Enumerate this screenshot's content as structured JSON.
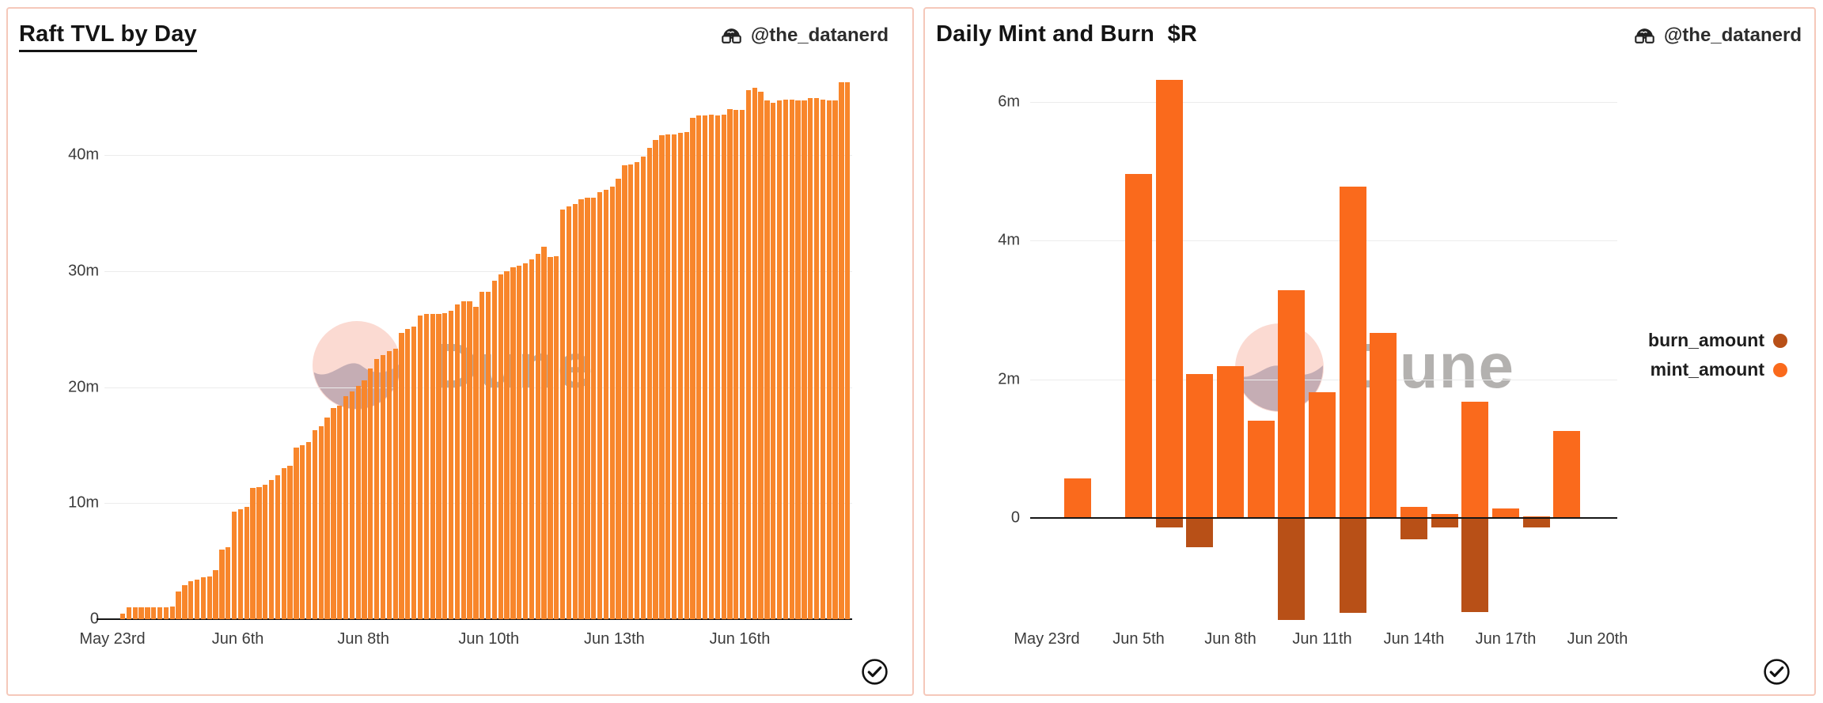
{
  "watermark": {
    "text": "Dune"
  },
  "colors": {
    "panel_border": "#F5C8BA",
    "grid": "#ECECEC",
    "axis": "#161616",
    "tvl_bar": "#F8862B",
    "mint": "#FA6A1C",
    "burn": "#B85017",
    "background": "#FFFFFF"
  },
  "left_panel": {
    "title": "Raft TVL by Day",
    "attribution": "@the_datanerd",
    "verified_icon": "check-circle",
    "chart_data": {
      "type": "bar",
      "title": "Raft TVL by Day",
      "unit": "millions",
      "ylim": [
        0,
        47
      ],
      "grid": true,
      "bar_color": "#F8862B",
      "y_ticks": [
        {
          "label": "40m",
          "value": 40
        },
        {
          "label": "30m",
          "value": 30
        },
        {
          "label": "20m",
          "value": 20
        },
        {
          "label": "10m",
          "value": 10
        },
        {
          "label": "0",
          "value": 0
        }
      ],
      "x_ticks": [
        "May 23rd",
        "Jun 6th",
        "Jun 8th",
        "Jun 10th",
        "Jun 13th",
        "Jun 16th"
      ],
      "series": [
        {
          "name": "tvl",
          "values": [
            0.5,
            1,
            1,
            1,
            1,
            1,
            1,
            1,
            1.1,
            2.4,
            2.9,
            3.3,
            3.4,
            3.6,
            3.7,
            4.2,
            6.0,
            6.2,
            9.3,
            9.5,
            9.7,
            11.3,
            11.4,
            11.6,
            12.0,
            12.4,
            13.0,
            13.2,
            14.8,
            15.0,
            15.3,
            16.3,
            16.6,
            17.4,
            18.2,
            18.4,
            19.2,
            19.6,
            20.1,
            20.6,
            21.6,
            22.4,
            22.8,
            23.1,
            23.3,
            24.7,
            25.0,
            25.2,
            26.2,
            26.3,
            26.3,
            26.3,
            26.4,
            26.6,
            27.1,
            27.4,
            27.4,
            26.9,
            28.2,
            28.2,
            29.2,
            29.7,
            30.0,
            30.3,
            30.5,
            30.7,
            31.0,
            31.5,
            32.1,
            31.2,
            31.3,
            35.3,
            35.6,
            35.8,
            36.2,
            36.3,
            36.3,
            36.8,
            37.0,
            37.3,
            38.0,
            39.1,
            39.2,
            39.4,
            39.9,
            40.6,
            41.3,
            41.7,
            41.8,
            41.8,
            41.9,
            42.0,
            43.2,
            43.4,
            43.4,
            43.5,
            43.4,
            43.5,
            44.0,
            43.9,
            43.9,
            45.6,
            45.8,
            45.5,
            44.7,
            44.5,
            44.7,
            44.8,
            44.8,
            44.7,
            44.7,
            44.9,
            44.9,
            44.8,
            44.7,
            44.7,
            46.3,
            46.3
          ]
        }
      ]
    }
  },
  "right_panel": {
    "title": "Daily Mint and Burn  $R",
    "attribution": "@the_datanerd",
    "verified_icon": "check-circle",
    "legend": [
      {
        "label": "burn_amount",
        "color": "#B85017"
      },
      {
        "label": "mint_amount",
        "color": "#FA6A1C"
      }
    ],
    "chart_data": {
      "type": "bar",
      "title": "Daily Mint and Burn $R",
      "unit": "millions",
      "ylim": [
        -2,
        6.5
      ],
      "grid": true,
      "num_slots": 19,
      "ticks_every_n_slots": 3,
      "x_ticks": [
        "May 23rd",
        "Jun 5th",
        "Jun 8th",
        "Jun 11th",
        "Jun 14th",
        "Jun 17th",
        "Jun 20th"
      ],
      "y_ticks": [
        {
          "label": "6m",
          "value": 6
        },
        {
          "label": "4m",
          "value": 4
        },
        {
          "label": "2m",
          "value": 2
        },
        {
          "label": "0",
          "value": 0
        }
      ],
      "series": [
        {
          "name": "mint_amount",
          "color": "#FA6A1C",
          "values": [
            0,
            0.57,
            0,
            4.96,
            6.32,
            2.07,
            2.19,
            1.4,
            3.28,
            1.81,
            4.78,
            2.67,
            0.16,
            0.06,
            1.68,
            0.14,
            0.02,
            1.25,
            0
          ]
        },
        {
          "name": "burn_amount",
          "color": "#B85017",
          "values": [
            0,
            0,
            0,
            0,
            -0.13,
            -0.41,
            0,
            0,
            -1.46,
            0,
            -1.36,
            0,
            -0.3,
            -0.12,
            -1.34,
            0,
            -0.13,
            0,
            0
          ]
        }
      ]
    }
  }
}
